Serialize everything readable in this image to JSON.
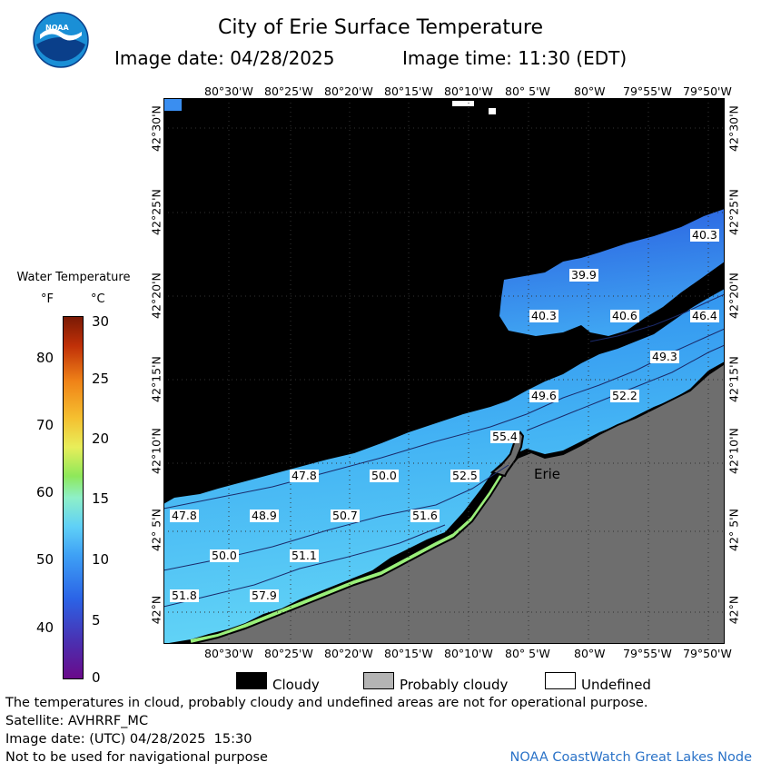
{
  "header": {
    "title": "City of Erie Surface Temperature",
    "image_date": "Image date: 04/28/2025",
    "image_time": "Image time: 11:30 (EDT)",
    "logo_text": "NOAA"
  },
  "map": {
    "top_lon_ticks": [
      "80°30'W",
      "80°25'W",
      "80°20'W",
      "80°15'W",
      "80°10'W",
      "80° 5'W",
      "80°W",
      "79°55'W",
      "79°50'W"
    ],
    "bottom_lon_ticks": [
      "80°30'W",
      "80°25'W",
      "80°20'W",
      "80°15'W",
      "80°10'W",
      "80° 5'W",
      "80°W",
      "79°55'W",
      "79°50'W"
    ],
    "lat_ticks": [
      "42°30'N",
      "42°25'N",
      "42°20'N",
      "42°15'N",
      "42°10'N",
      "42° 5'N",
      "42°N"
    ],
    "city_label": "Erie",
    "temperature_labels": [
      {
        "value": "40.3",
        "lon": "79°50'W",
        "lat": "42°23'N"
      },
      {
        "value": "39.9",
        "lon": "80°2'W",
        "lat": "42°20'N"
      },
      {
        "value": "40.3",
        "lon": "80°6'W",
        "lat": "42°18'N"
      },
      {
        "value": "40.6",
        "lon": "79°58'W",
        "lat": "42°18'N"
      },
      {
        "value": "46.4",
        "lon": "79°50'W",
        "lat": "42°18'N"
      },
      {
        "value": "49.3",
        "lon": "79°54'W",
        "lat": "42°16'N"
      },
      {
        "value": "49.6",
        "lon": "80°5'W",
        "lat": "42°13'N"
      },
      {
        "value": "52.2",
        "lon": "79°57'W",
        "lat": "42°13'N"
      },
      {
        "value": "55.4",
        "lon": "80°6'W",
        "lat": "42°10'N"
      },
      {
        "value": "47.8",
        "lon": "80°24'W",
        "lat": "42°8'N"
      },
      {
        "value": "50.0",
        "lon": "80°17'W",
        "lat": "42°8'N"
      },
      {
        "value": "52.5",
        "lon": "80°10'W",
        "lat": "42°8'N"
      },
      {
        "value": "47.8",
        "lon": "80°33'W",
        "lat": "42°5'N"
      },
      {
        "value": "48.9",
        "lon": "80°27'W",
        "lat": "42°5'N"
      },
      {
        "value": "50.7",
        "lon": "80°20'W",
        "lat": "42°5'N"
      },
      {
        "value": "51.6",
        "lon": "80°14'W",
        "lat": "42°5'N"
      },
      {
        "value": "50.0",
        "lon": "80°31'W",
        "lat": "42°3'N"
      },
      {
        "value": "51.1",
        "lon": "80°24'W",
        "lat": "42°3'N"
      },
      {
        "value": "51.8",
        "lon": "80°33'W",
        "lat": "42°1'N"
      },
      {
        "value": "57.9",
        "lon": "80°26'W",
        "lat": "42°1'N"
      }
    ]
  },
  "legend": {
    "title": "Water Temperature",
    "unit_f": "°F",
    "unit_c": "°C",
    "f_ticks": [
      "80",
      "70",
      "60",
      "50",
      "40"
    ],
    "c_ticks": [
      "30",
      "25",
      "20",
      "15",
      "10",
      "5",
      "0"
    ]
  },
  "key": {
    "cloudy": "Cloudy",
    "probably_cloudy": "Probably cloudy",
    "undefined": "Undefined"
  },
  "footer": {
    "disclaimer": "The temperatures in cloud, probably cloudy and undefined areas are not for operational purpose.",
    "satellite": "Satellite: AVHRRF_MC",
    "utc_date": "Image date: (UTC) 04/28/2025  15:30",
    "navigation": "Not to be used for navigational purpose",
    "node": "NOAA CoastWatch Great Lakes Node"
  },
  "colors": {
    "cloud": "#000000",
    "land": "#6e6e6e",
    "water_cold": "#2a62e0",
    "water_warm": "#5ad2f5",
    "node_text": "#2b73c8"
  }
}
